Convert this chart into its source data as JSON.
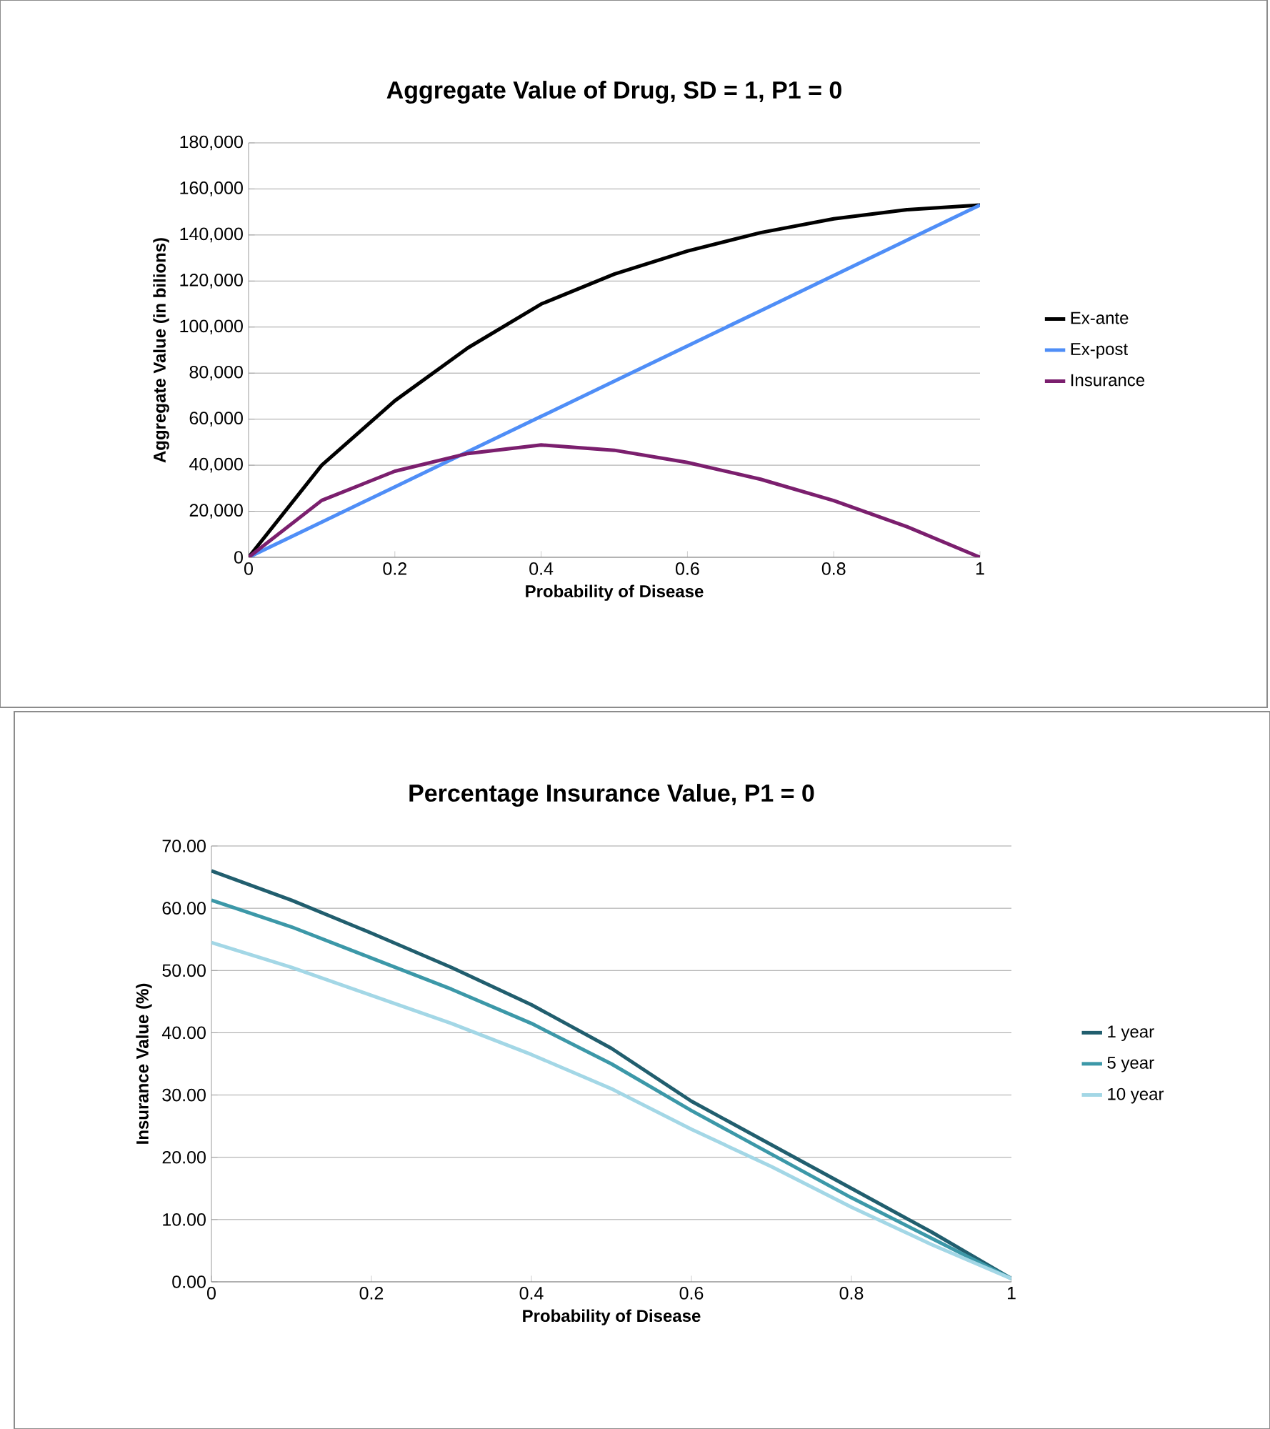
{
  "chart_data": [
    {
      "type": "line",
      "title": "Aggregate Value of Drug, SD = 1, P1 = 0",
      "xlabel": "Probability of Disease",
      "ylabel": "Aggregate Value (in bilions)",
      "x": [
        0,
        0.1,
        0.2,
        0.3,
        0.4,
        0.5,
        0.6,
        0.7,
        0.8,
        0.9,
        1
      ],
      "series": [
        {
          "name": "Ex-ante",
          "color": "#000000",
          "values": [
            0,
            40000,
            68000,
            91000,
            110000,
            123000,
            133000,
            141000,
            147000,
            151000,
            153000
          ]
        },
        {
          "name": "Ex-post",
          "color": "#4f8ef7",
          "values": [
            0,
            15300,
            30600,
            45900,
            61200,
            76500,
            91800,
            107100,
            122400,
            137700,
            153000
          ]
        },
        {
          "name": "Insurance",
          "color": "#7b1f6e",
          "values": [
            0,
            24700,
            37400,
            45100,
            48800,
            46500,
            41200,
            33900,
            24600,
            13300,
            0
          ]
        }
      ],
      "xlim": [
        0,
        1
      ],
      "xticks": [
        0,
        0.2,
        0.4,
        0.6,
        0.8,
        1
      ],
      "ylim": [
        0,
        180000
      ],
      "yticks": [
        {
          "value": 0,
          "label": "0"
        },
        {
          "value": 20000,
          "label": "20,000"
        },
        {
          "value": 40000,
          "label": "40,000"
        },
        {
          "value": 60000,
          "label": "60,000"
        },
        {
          "value": 80000,
          "label": "80,000"
        },
        {
          "value": 100000,
          "label": "100,000"
        },
        {
          "value": 120000,
          "label": "120,000"
        },
        {
          "value": 140000,
          "label": "140,000"
        },
        {
          "value": 160000,
          "label": "160,000"
        },
        {
          "value": 180000,
          "label": "180,000"
        }
      ],
      "grid": "y",
      "legend": "right"
    },
    {
      "type": "line",
      "title": "Percentage Insurance Value, P1 = 0",
      "xlabel": "Probability of Disease",
      "ylabel": "Insurance Value (%)",
      "x": [
        0,
        0.1,
        0.2,
        0.3,
        0.4,
        0.5,
        0.6,
        0.7,
        0.8,
        0.9,
        1
      ],
      "series": [
        {
          "name": "1 year",
          "color": "#215e6e",
          "values": [
            66,
            61.3,
            56,
            50.5,
            44.5,
            37.5,
            29,
            22,
            15,
            8,
            0.5
          ]
        },
        {
          "name": "5 year",
          "color": "#3c98a8",
          "values": [
            61.3,
            57,
            52,
            47,
            41.5,
            35,
            27.5,
            20.5,
            13.5,
            7,
            0.5
          ]
        },
        {
          "name": "10 year",
          "color": "#a3d7e6",
          "values": [
            54.5,
            50.5,
            46,
            41.5,
            36.5,
            31,
            24.5,
            18.5,
            12,
            6,
            0.5
          ]
        }
      ],
      "xlim": [
        0,
        1
      ],
      "xticks": [
        0,
        0.2,
        0.4,
        0.6,
        0.8,
        1
      ],
      "ylim": [
        0,
        70
      ],
      "yticks": [
        {
          "value": 0,
          "label": "0.00"
        },
        {
          "value": 10,
          "label": "10.00"
        },
        {
          "value": 20,
          "label": "20.00"
        },
        {
          "value": 30,
          "label": "30.00"
        },
        {
          "value": 40,
          "label": "40.00"
        },
        {
          "value": 50,
          "label": "50.00"
        },
        {
          "value": 60,
          "label": "60.00"
        },
        {
          "value": 70,
          "label": "70.00"
        }
      ],
      "grid": "y",
      "legend": "right"
    }
  ]
}
